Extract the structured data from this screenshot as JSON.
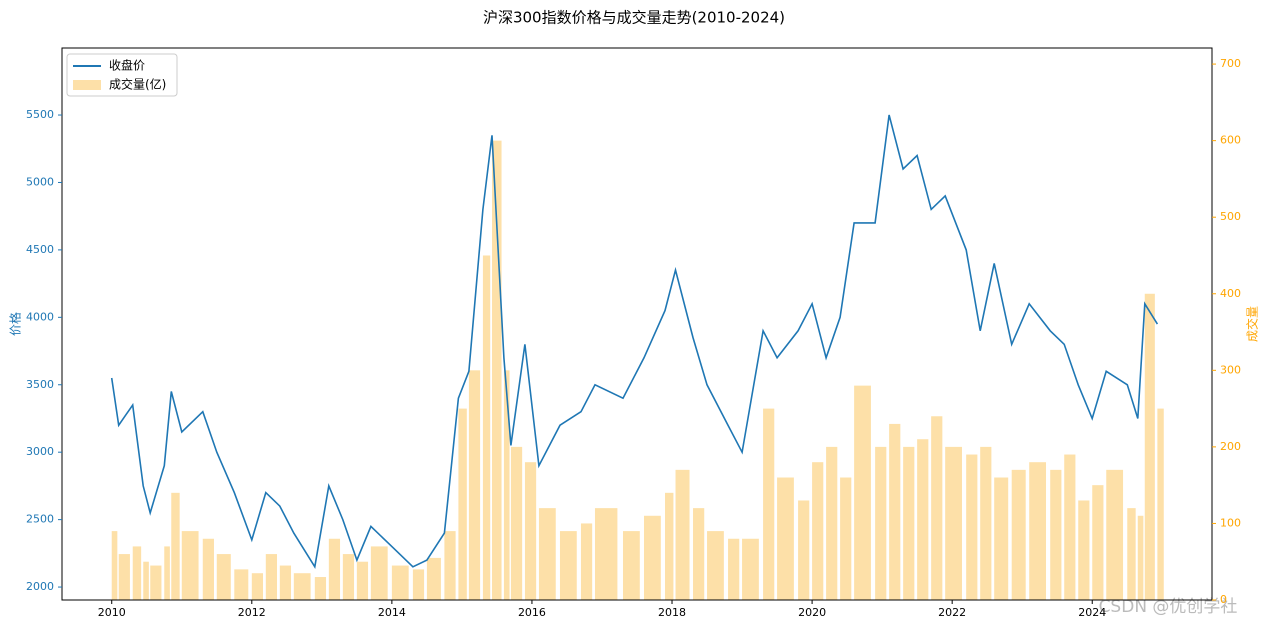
{
  "chart_data": {
    "type": "line_bar_dual",
    "title": "沪深300指数价格与成交量走势(2010-2024)",
    "y_label": "价格",
    "y2_label": "成交量",
    "x": [
      2010.0,
      2010.1,
      2010.3,
      2010.45,
      2010.55,
      2010.75,
      2010.85,
      2011.0,
      2011.3,
      2011.5,
      2011.75,
      2012.0,
      2012.2,
      2012.4,
      2012.6,
      2012.9,
      2013.1,
      2013.3,
      2013.5,
      2013.7,
      2014.0,
      2014.3,
      2014.5,
      2014.75,
      2014.95,
      2015.1,
      2015.3,
      2015.43,
      2015.6,
      2015.7,
      2015.9,
      2016.1,
      2016.4,
      2016.7,
      2016.9,
      2017.3,
      2017.6,
      2017.9,
      2018.05,
      2018.3,
      2018.5,
      2018.8,
      2019.0,
      2019.3,
      2019.5,
      2019.8,
      2020.0,
      2020.2,
      2020.4,
      2020.6,
      2020.9,
      2021.1,
      2021.3,
      2021.5,
      2021.7,
      2021.9,
      2022.2,
      2022.4,
      2022.6,
      2022.85,
      2023.1,
      2023.4,
      2023.6,
      2023.8,
      2024.0,
      2024.2,
      2024.5,
      2024.65,
      2024.75,
      2024.93
    ],
    "series": [
      {
        "name": "收盘价",
        "kind": "line",
        "color": "#1f77b4",
        "axis": "y",
        "values": [
          3550,
          3200,
          3350,
          2750,
          2550,
          2900,
          3450,
          3150,
          3300,
          3000,
          2700,
          2350,
          2700,
          2600,
          2400,
          2150,
          2750,
          2500,
          2200,
          2450,
          2300,
          2150,
          2200,
          2400,
          3400,
          3600,
          4800,
          5350,
          3700,
          3050,
          3800,
          2900,
          3200,
          3300,
          3500,
          3400,
          3700,
          4050,
          4350,
          3850,
          3500,
          3200,
          3000,
          3900,
          3700,
          3900,
          4100,
          3700,
          4000,
          4700,
          4700,
          5500,
          5100,
          5200,
          4800,
          4900,
          4500,
          3900,
          4400,
          3800,
          4100,
          3900,
          3800,
          3500,
          3250,
          3600,
          3500,
          3250,
          4100,
          3950
        ]
      },
      {
        "name": "成交量(亿)",
        "kind": "bar",
        "color": "#fde0a8",
        "axis": "y2",
        "values": [
          90,
          60,
          70,
          50,
          45,
          70,
          140,
          90,
          80,
          60,
          40,
          35,
          60,
          45,
          35,
          30,
          80,
          60,
          50,
          70,
          45,
          40,
          55,
          90,
          250,
          300,
          450,
          600,
          300,
          200,
          180,
          120,
          90,
          100,
          120,
          90,
          110,
          140,
          170,
          120,
          90,
          80,
          80,
          250,
          160,
          130,
          180,
          200,
          160,
          280,
          200,
          230,
          200,
          210,
          240,
          200,
          190,
          200,
          160,
          170,
          180,
          170,
          190,
          130,
          150,
          170,
          120,
          110,
          400,
          250
        ]
      }
    ],
    "xlim": [
      2009.29,
      2025.71
    ],
    "xticks": [
      2010,
      2012,
      2014,
      2016,
      2018,
      2020,
      2022,
      2024
    ],
    "ylim": [
      1904,
      5997
    ],
    "yticks": [
      2000,
      2500,
      3000,
      3500,
      4000,
      4500,
      5000,
      5500
    ],
    "y2lim": [
      0,
      721
    ],
    "y2ticks": [
      0,
      100,
      200,
      300,
      400,
      500,
      600,
      700
    ],
    "y_color": "#1f77b4",
    "y2_color": "#ffa500",
    "legend": "upper-left",
    "watermark": "CSDN @优创学社"
  }
}
